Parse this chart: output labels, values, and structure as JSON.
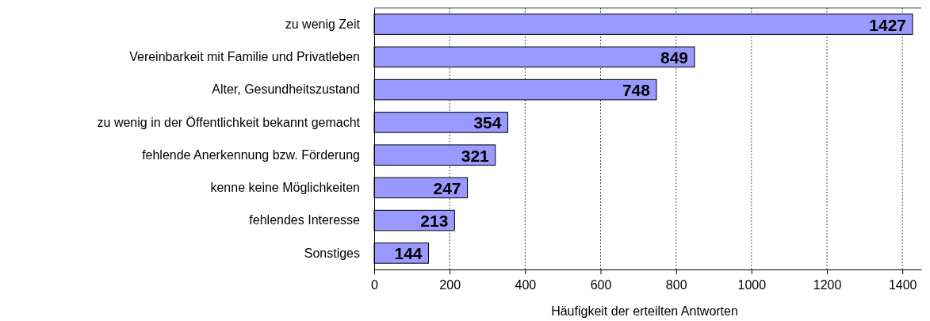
{
  "chart_data": {
    "type": "bar",
    "orientation": "horizontal",
    "xlabel": "Häufigkeit der erteilten Antworten",
    "categories": [
      "zu wenig Zeit",
      "Vereinbarkeit mit Familie und Privatleben",
      "Alter, Gesundheitszustand",
      "zu wenig in der Öffentlichkeit bekannt gemacht",
      "fehlende Anerkennung bzw. Förderung",
      "kenne keine Möglichkeiten",
      "fehlendes Interesse",
      "Sonstiges"
    ],
    "values": [
      1427,
      849,
      748,
      354,
      321,
      247,
      213,
      144
    ],
    "color": "#9999ff",
    "data_labels": true,
    "grid": "x",
    "xlim": [
      0,
      1450
    ],
    "xticks": [
      0,
      200,
      400,
      600,
      800,
      1000,
      1200,
      1400
    ]
  }
}
